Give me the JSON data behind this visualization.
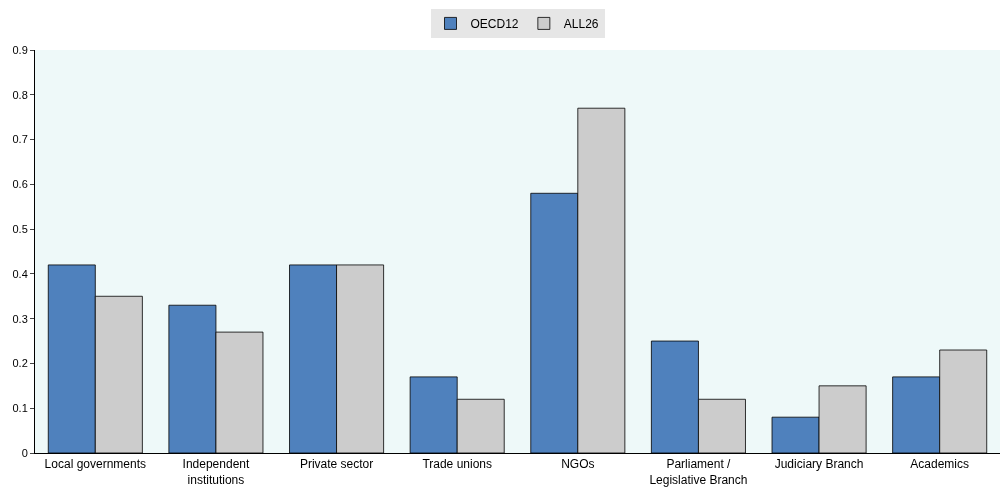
{
  "chart_data": {
    "type": "bar",
    "categories": [
      "Local governments",
      "Independent institutions",
      "Private sector",
      "Trade unions",
      "NGOs",
      "Parliament / Legislative Branch",
      "Judiciary Branch",
      "Academics"
    ],
    "series": [
      {
        "name": "OECD12",
        "color": "#4f81bd",
        "values": [
          0.42,
          0.33,
          0.42,
          0.17,
          0.58,
          0.25,
          0.08,
          0.17
        ]
      },
      {
        "name": "ALL26",
        "color": "#cccccc",
        "values": [
          0.35,
          0.27,
          0.42,
          0.12,
          0.77,
          0.12,
          0.15,
          0.23
        ]
      }
    ],
    "ylim": [
      0,
      0.9
    ],
    "yticks": [
      0,
      0.1,
      0.2,
      0.3,
      0.4,
      0.5,
      0.6,
      0.7,
      0.8,
      0.9
    ],
    "grid": false,
    "legend": "top"
  }
}
